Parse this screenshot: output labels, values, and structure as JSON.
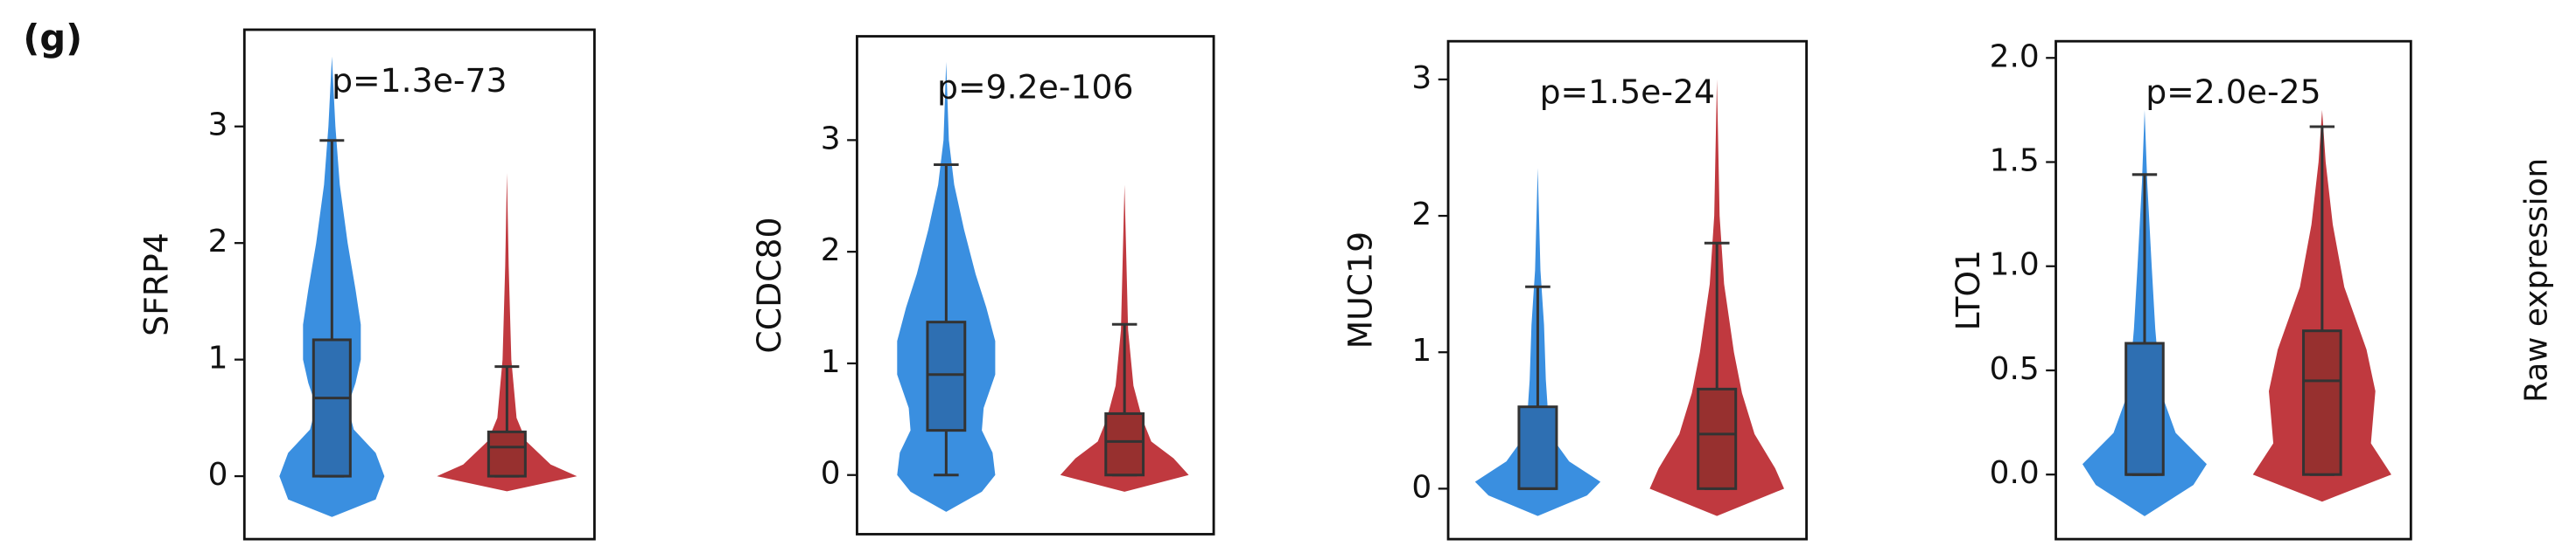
{
  "panel_label": "(g)",
  "side_label": "Raw expression",
  "chart_data": [
    {
      "type": "violin",
      "y_label": "SFRP4",
      "annotation": "p=1.3e-73",
      "categories": [
        null,
        null
      ],
      "ylim": [
        -0.54,
        3.83
      ],
      "yticks": [
        0,
        1,
        2,
        3
      ],
      "series": [
        {
          "color": "#3a8fe0",
          "box_color": "#2e6fb2",
          "q1": 0,
          "median": 0.67,
          "q3": 1.17,
          "whisker_low": 0,
          "whisker_high": 2.88,
          "violin": {
            "y": [
              -0.35,
              -0.2,
              0,
              0.2,
              0.4,
              0.6,
              0.8,
              1.0,
              1.3,
              1.6,
              2.0,
              2.5,
              3.0,
              3.6
            ],
            "width": [
              0,
              0.5,
              0.6,
              0.5,
              0.25,
              0.18,
              0.27,
              0.33,
              0.33,
              0.27,
              0.18,
              0.09,
              0.04,
              0
            ]
          }
        },
        {
          "color": "#c0393f",
          "box_color": "#97302f",
          "q1": 0,
          "median": 0.25,
          "q3": 0.38,
          "whisker_low": 0,
          "whisker_high": 0.94,
          "violin": {
            "y": [
              -0.13,
              0,
              0.1,
              0.3,
              0.5,
              1.0,
              1.8,
              2.6
            ],
            "width": [
              0,
              0.8,
              0.5,
              0.22,
              0.11,
              0.05,
              0.02,
              0
            ]
          }
        }
      ]
    },
    {
      "type": "violin",
      "y_label": "CCDC80",
      "annotation": "p=9.2e-106",
      "categories": [
        null,
        null
      ],
      "ylim": [
        -0.53,
        3.93
      ],
      "yticks": [
        0,
        1,
        2,
        3
      ],
      "series": [
        {
          "color": "#3a8fe0",
          "box_color": "#2e6fb2",
          "q1": 0.4,
          "median": 0.9,
          "q3": 1.37,
          "whisker_low": 0,
          "whisker_high": 2.78,
          "violin": {
            "y": [
              -0.33,
              -0.15,
              0,
              0.2,
              0.4,
              0.6,
              0.9,
              1.2,
              1.5,
              1.8,
              2.2,
              2.6,
              3.0,
              3.7
            ],
            "width": [
              0,
              0.4,
              0.55,
              0.52,
              0.4,
              0.42,
              0.55,
              0.55,
              0.45,
              0.33,
              0.2,
              0.09,
              0.03,
              0
            ]
          }
        },
        {
          "color": "#c0393f",
          "box_color": "#97302f",
          "q1": 0,
          "median": 0.3,
          "q3": 0.55,
          "whisker_low": 0,
          "whisker_high": 1.35,
          "violin": {
            "y": [
              -0.15,
              0,
              0.15,
              0.3,
              0.5,
              0.8,
              1.3,
              2.6
            ],
            "width": [
              0,
              0.72,
              0.55,
              0.3,
              0.2,
              0.1,
              0.04,
              0
            ]
          }
        }
      ]
    },
    {
      "type": "violin",
      "y_label": "MUC19",
      "annotation": "p=1.5e-24",
      "categories": [
        null,
        null
      ],
      "ylim": [
        -0.37,
        3.28
      ],
      "yticks": [
        0,
        1,
        2,
        3
      ],
      "series": [
        {
          "color": "#3a8fe0",
          "box_color": "#2e6fb2",
          "q1": 0,
          "median": 0.0,
          "q3": 0.6,
          "whisker_low": 0,
          "whisker_high": 1.48,
          "violin": {
            "y": [
              -0.2,
              -0.05,
              0.05,
              0.2,
              0.4,
              0.8,
              1.2,
              1.6,
              2.35
            ],
            "width": [
              0,
              0.55,
              0.7,
              0.35,
              0.13,
              0.09,
              0.07,
              0.03,
              0
            ]
          }
        },
        {
          "color": "#c0393f",
          "box_color": "#97302f",
          "q1": 0,
          "median": 0.4,
          "q3": 0.73,
          "whisker_low": 0,
          "whisker_high": 1.8,
          "violin": {
            "y": [
              -0.2,
              0,
              0.15,
              0.4,
              0.7,
              1.0,
              1.5,
              2.0,
              3.0
            ],
            "width": [
              0,
              0.75,
              0.65,
              0.42,
              0.28,
              0.19,
              0.08,
              0.03,
              0
            ]
          }
        }
      ]
    },
    {
      "type": "violin",
      "y_label": "LTO1",
      "annotation": "p=2.0e-25",
      "categories": [
        null,
        null
      ],
      "ylim": [
        -0.31,
        2.08
      ],
      "yticks": [
        {
          "value": 0,
          "label": "0.0"
        },
        {
          "value": 0.5,
          "label": "0.5"
        },
        {
          "value": 1,
          "label": "1.0"
        },
        {
          "value": 1.5,
          "label": "1.5"
        },
        {
          "value": 2,
          "label": "2.0"
        }
      ],
      "series": [
        {
          "color": "#3a8fe0",
          "box_color": "#2e6fb2",
          "q1": 0,
          "median": 0.0,
          "q3": 0.63,
          "whisker_low": 0,
          "whisker_high": 1.44,
          "violin": {
            "y": [
              -0.2,
              -0.05,
              0.05,
              0.2,
              0.4,
              0.7,
              1.0,
              1.4,
              1.75
            ],
            "width": [
              0,
              0.55,
              0.7,
              0.35,
              0.18,
              0.12,
              0.08,
              0.03,
              0
            ]
          }
        },
        {
          "color": "#c0393f",
          "box_color": "#97302f",
          "q1": 0,
          "median": 0.45,
          "q3": 0.69,
          "whisker_low": 0,
          "whisker_high": 1.67,
          "violin": {
            "y": [
              -0.13,
              0,
              0.15,
              0.4,
              0.6,
              0.9,
              1.2,
              1.5,
              1.75
            ],
            "width": [
              0,
              0.78,
              0.55,
              0.6,
              0.5,
              0.25,
              0.12,
              0.04,
              0
            ]
          }
        }
      ]
    }
  ]
}
